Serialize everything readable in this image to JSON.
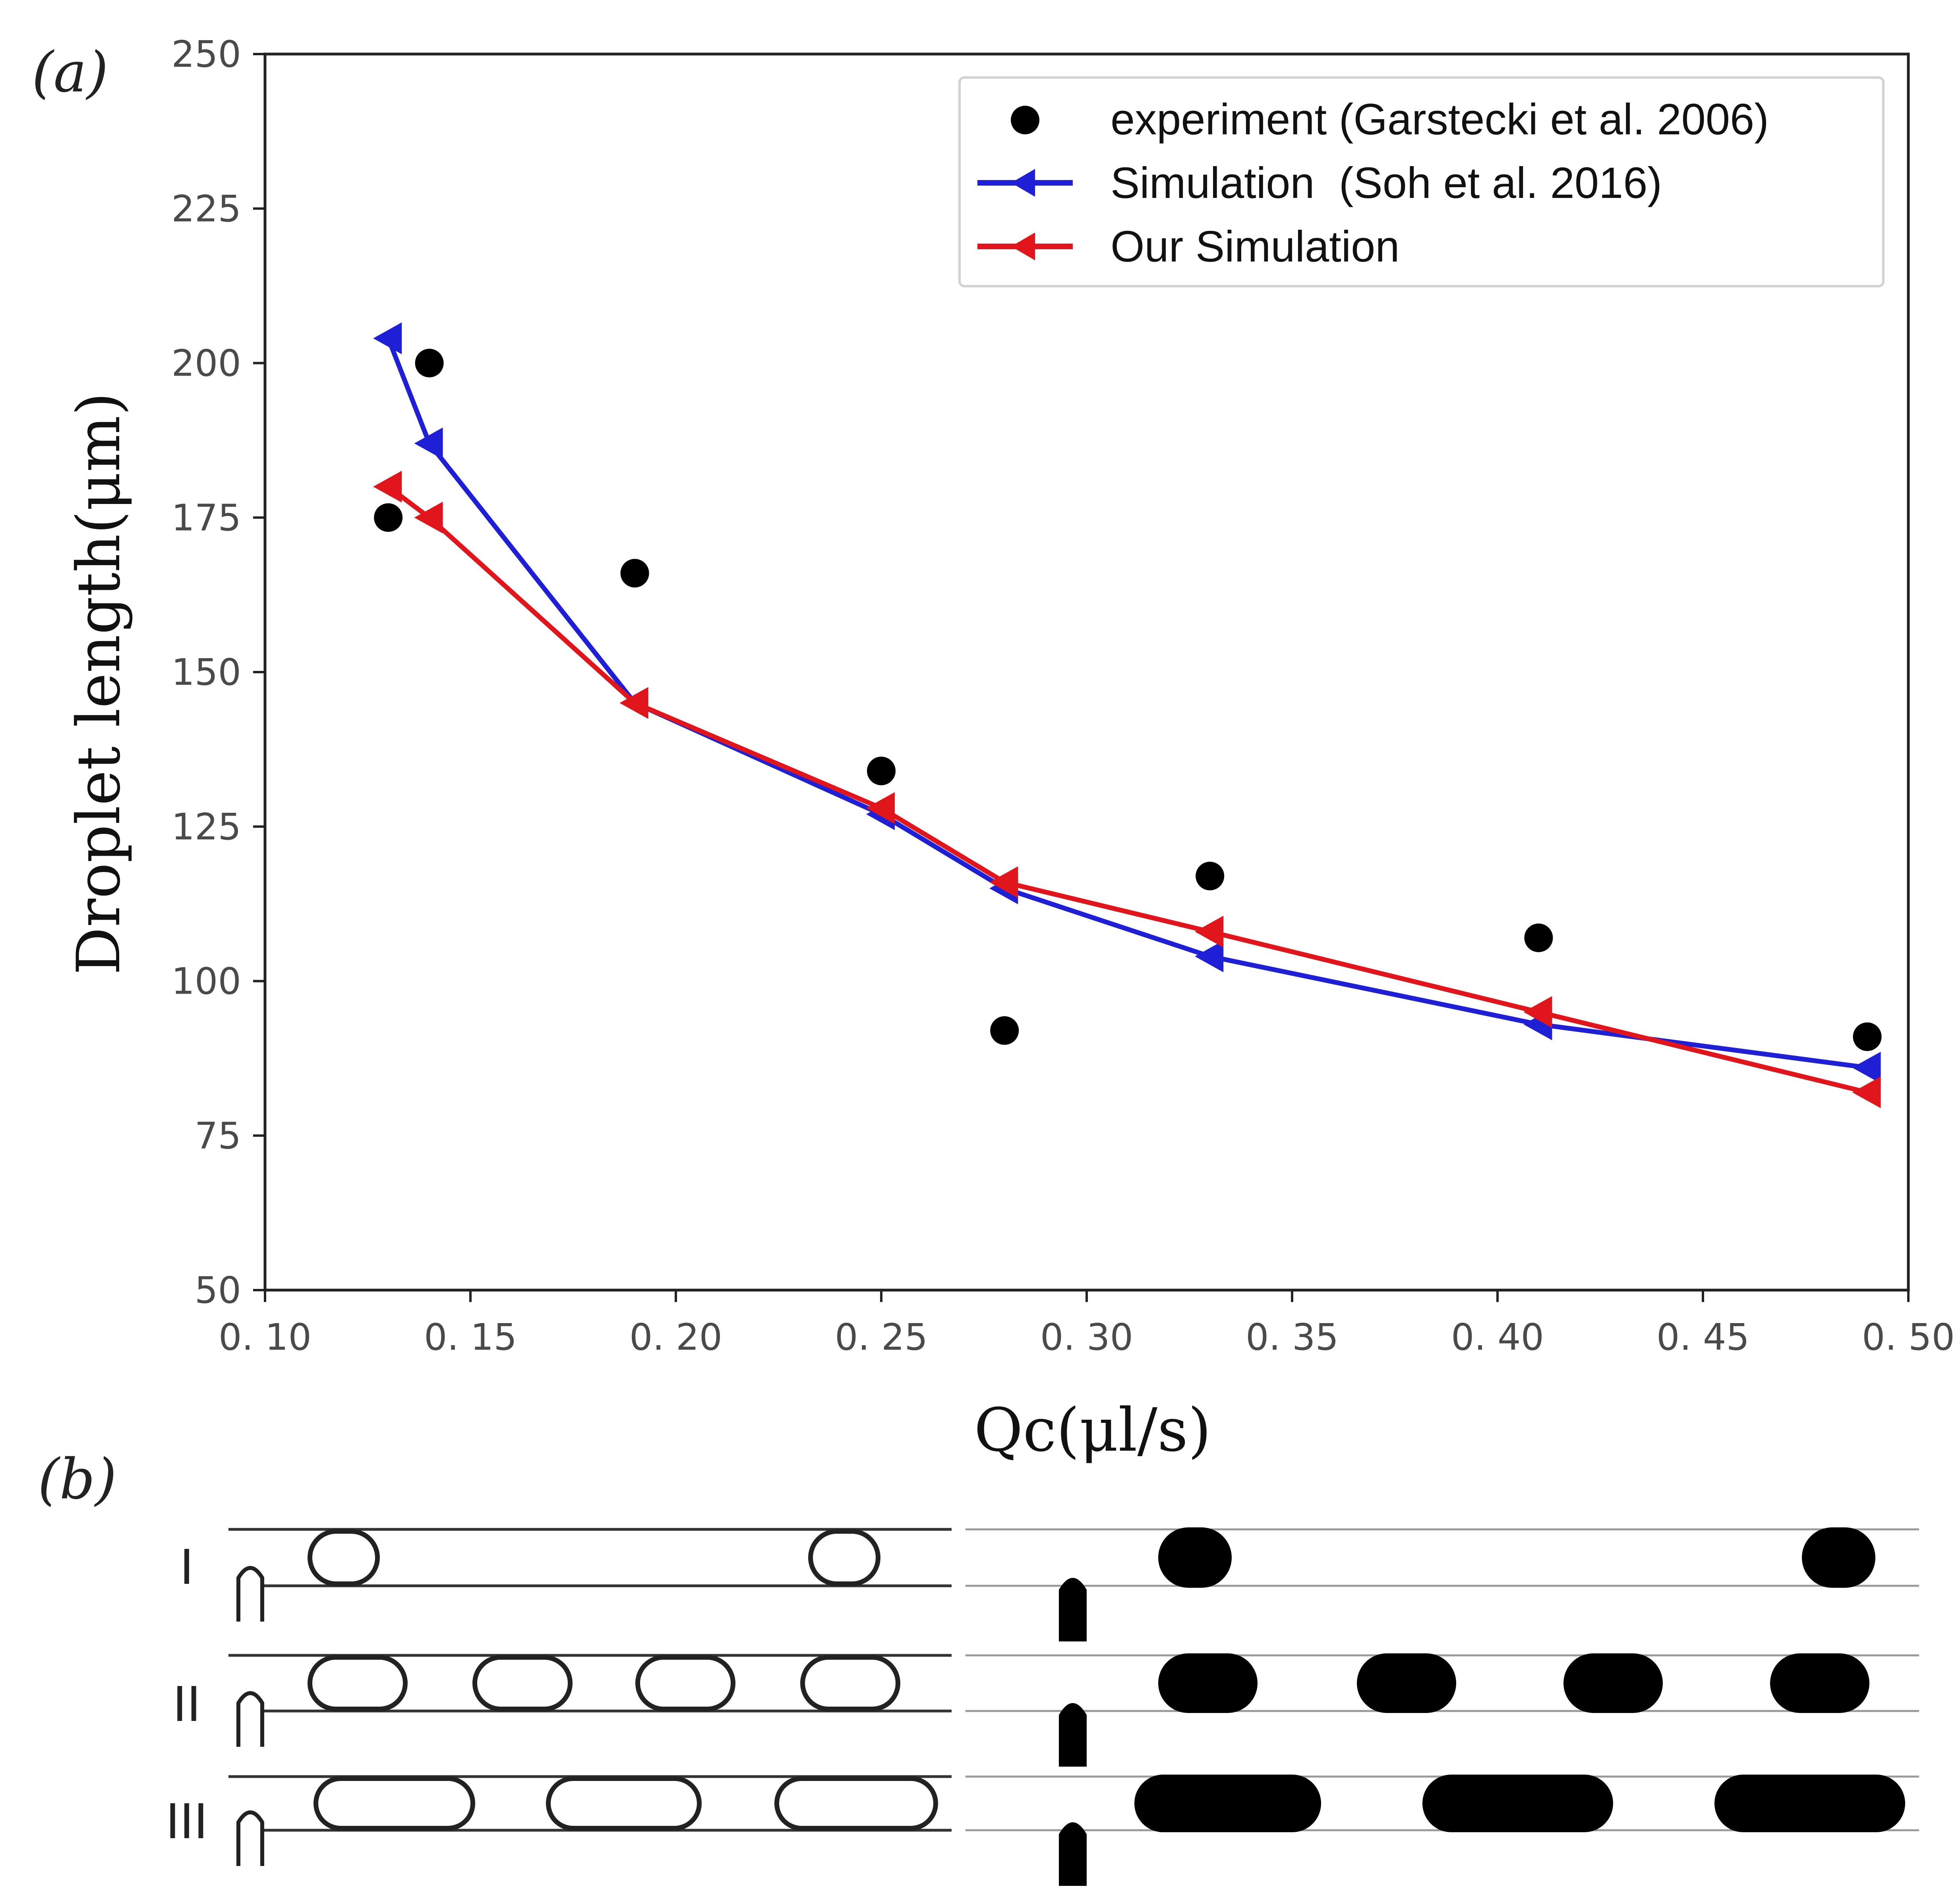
{
  "chart_data": {
    "type": "line",
    "panel_a_label": "(a)",
    "panel_b_label": "(b)",
    "xlabel": "Qc(μl/s)",
    "ylabel": "Droplet length(μm)",
    "xlim": [
      0.1,
      0.5
    ],
    "ylim": [
      50,
      250
    ],
    "xticks": [
      0.1,
      0.15,
      0.2,
      0.25,
      0.3,
      0.35,
      0.4,
      0.45,
      0.5
    ],
    "xtick_labels": [
      "0. 10",
      "0. 15",
      "0. 20",
      "0. 25",
      "0. 30",
      "0. 35",
      "0. 40",
      "0. 45",
      "0. 50"
    ],
    "yticks": [
      50,
      75,
      100,
      125,
      150,
      175,
      200,
      225,
      250
    ],
    "ytick_labels": [
      "50",
      "75",
      "100",
      "125",
      "150",
      "175",
      "200",
      "225",
      "250"
    ],
    "grid": false,
    "legend_position": "top-right",
    "series": [
      {
        "name": "experiment (Garstecki et al. 2006)",
        "kind": "scatter",
        "color": "#000000",
        "x": [
          0.13,
          0.14,
          0.19,
          0.25,
          0.28,
          0.33,
          0.41,
          0.49
        ],
        "y": [
          175,
          200,
          166,
          134,
          92,
          117,
          107,
          91
        ]
      },
      {
        "name": "Simulation  (Soh et al. 2016)",
        "kind": "line",
        "color": "#1f1fd6",
        "x": [
          0.13,
          0.14,
          0.19,
          0.25,
          0.28,
          0.33,
          0.41,
          0.49
        ],
        "y": [
          204,
          187,
          145,
          127,
          115,
          104,
          93,
          86
        ]
      },
      {
        "name": "Our Simulation",
        "kind": "line",
        "color": "#e0161c",
        "x": [
          0.13,
          0.14,
          0.19,
          0.25,
          0.28,
          0.33,
          0.41,
          0.49
        ],
        "y": [
          180,
          175,
          145,
          128,
          116,
          108,
          95,
          82
        ]
      }
    ],
    "panel_b": {
      "row_labels": [
        "I",
        "II",
        "III"
      ],
      "row_droplet_counts": [
        2,
        4,
        3
      ]
    }
  }
}
